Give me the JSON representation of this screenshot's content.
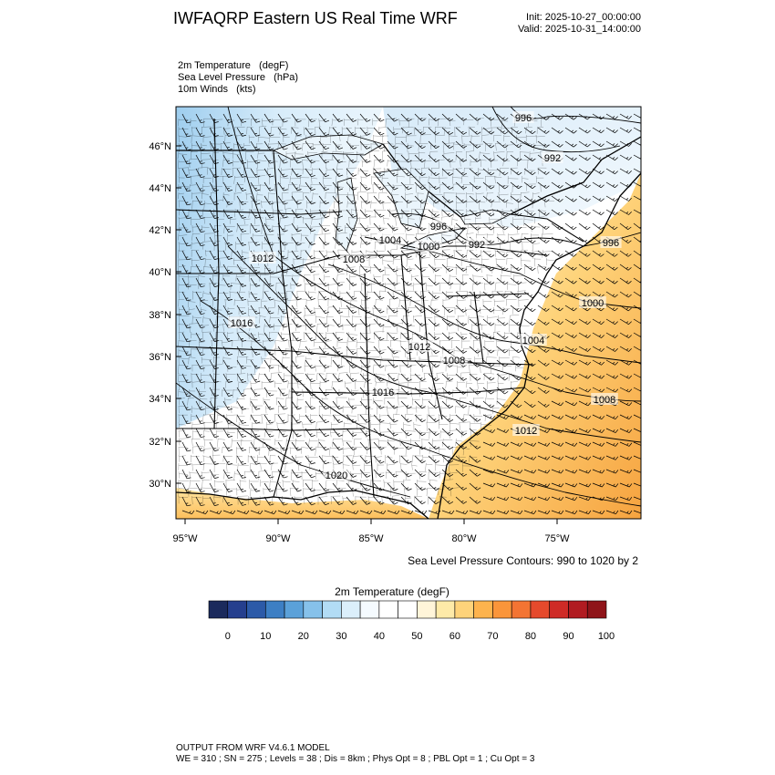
{
  "header": {
    "title": "IWFAQRP Eastern US Real Time WRF",
    "init": "Init: 2025-10-27_00:00:00",
    "valid": "Valid: 2025-10-31_14:00:00"
  },
  "fields": [
    "2m Temperature   (degF)",
    "Sea Level Pressure   (hPa)",
    "10m Winds   (kts)"
  ],
  "map": {
    "lat_labels": [
      "46°N",
      "44°N",
      "42°N",
      "40°N",
      "38°N",
      "36°N",
      "34°N",
      "32°N",
      "30°N"
    ],
    "lon_labels": [
      "95°W",
      "90°W",
      "85°W",
      "80°W",
      "75°W"
    ],
    "pressure_labels": [
      "996",
      "992",
      "996",
      "1004",
      "1000",
      "992",
      "1012",
      "1008",
      "996",
      "1000",
      "1016",
      "1012",
      "1004",
      "1008",
      "1016",
      "1008",
      "1012",
      "1020"
    ]
  },
  "contour_note": "Sea Level Pressure Contours: 990 to 1020 by 2",
  "colorbar": {
    "title": "2m Temperature  (degF)",
    "tick_labels": [
      "0",
      "10",
      "20",
      "30",
      "40",
      "50",
      "60",
      "70",
      "80",
      "90",
      "100"
    ],
    "colors": [
      "#1b2a5c",
      "#253f8e",
      "#2c5aa8",
      "#3d7fc4",
      "#5ba1d9",
      "#86c1ea",
      "#b2dcf5",
      "#dbeffb",
      "#f5fbff",
      "#ffffff",
      "#ffffff",
      "#fff5d9",
      "#feeaa8",
      "#fed37a",
      "#fdb34d",
      "#fa953a",
      "#f37433",
      "#e54a2c",
      "#cf2b26",
      "#b11b21",
      "#8f1419"
    ]
  },
  "footer": {
    "line1": "OUTPUT FROM WRF V4.6.1 MODEL",
    "line2": "WE = 310 ; SN = 275 ; Levels = 38 ; Dis = 8km ; Phys Opt = 8 ; PBL Opt = 1 ; Cu Opt = 3"
  }
}
